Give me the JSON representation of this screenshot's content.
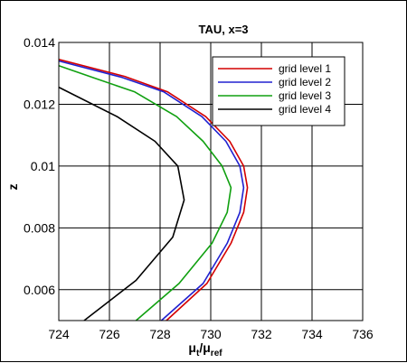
{
  "chart_data": {
    "type": "line",
    "title": "TAU, x=3",
    "xlabel": "μ",
    "xlabel_sub1": "t",
    "xlabel_mid": "/μ",
    "xlabel_sub2": "ref",
    "ylabel": "z",
    "xlim": [
      724,
      736
    ],
    "ylim": [
      0.005,
      0.014
    ],
    "grid": true,
    "legend_position": "top-right",
    "x_ticks": [
      724,
      726,
      728,
      730,
      732,
      734,
      736
    ],
    "y_ticks": [
      0.006,
      0.008,
      0.01,
      0.012,
      0.014
    ],
    "x_tick_labels": [
      "724",
      "726",
      "728",
      "730",
      "732",
      "734",
      "736"
    ],
    "y_tick_labels": [
      "0.006",
      "0.008",
      "0.01",
      "0.012",
      "0.014"
    ],
    "series": [
      {
        "name": "grid level 1",
        "color": "#d40000",
        "points": [
          [
            728.25,
            0.005
          ],
          [
            729.85,
            0.0062
          ],
          [
            730.8,
            0.0075
          ],
          [
            731.3,
            0.0085
          ],
          [
            731.45,
            0.0093
          ],
          [
            731.3,
            0.01
          ],
          [
            730.75,
            0.0108
          ],
          [
            729.8,
            0.0116
          ],
          [
            728.3,
            0.0124
          ],
          [
            726.6,
            0.0129
          ],
          [
            724.0,
            0.01345
          ]
        ]
      },
      {
        "name": "grid level 2",
        "color": "#2020d0",
        "points": [
          [
            728.05,
            0.005
          ],
          [
            729.7,
            0.0062
          ],
          [
            730.65,
            0.0075
          ],
          [
            731.15,
            0.0085
          ],
          [
            731.3,
            0.0093
          ],
          [
            731.15,
            0.01
          ],
          [
            730.6,
            0.0108
          ],
          [
            729.65,
            0.0116
          ],
          [
            728.15,
            0.0124
          ],
          [
            726.5,
            0.01287
          ],
          [
            724.0,
            0.0134
          ]
        ]
      },
      {
        "name": "grid level 3",
        "color": "#10a010",
        "points": [
          [
            727.05,
            0.005
          ],
          [
            728.75,
            0.0062
          ],
          [
            730.05,
            0.0075
          ],
          [
            730.65,
            0.0085
          ],
          [
            730.8,
            0.0093
          ],
          [
            730.45,
            0.01
          ],
          [
            729.7,
            0.0108
          ],
          [
            728.65,
            0.0116
          ],
          [
            727.0,
            0.0124
          ],
          [
            725.4,
            0.01285
          ],
          [
            724.0,
            0.01325
          ]
        ]
      },
      {
        "name": "grid level 4",
        "color": "#000000",
        "points": [
          [
            725.0,
            0.005
          ],
          [
            727.05,
            0.0063
          ],
          [
            728.5,
            0.0077
          ],
          [
            728.95,
            0.0089
          ],
          [
            728.7,
            0.01
          ],
          [
            727.8,
            0.0108
          ],
          [
            726.3,
            0.0116
          ],
          [
            724.0,
            0.01255
          ]
        ]
      }
    ]
  }
}
